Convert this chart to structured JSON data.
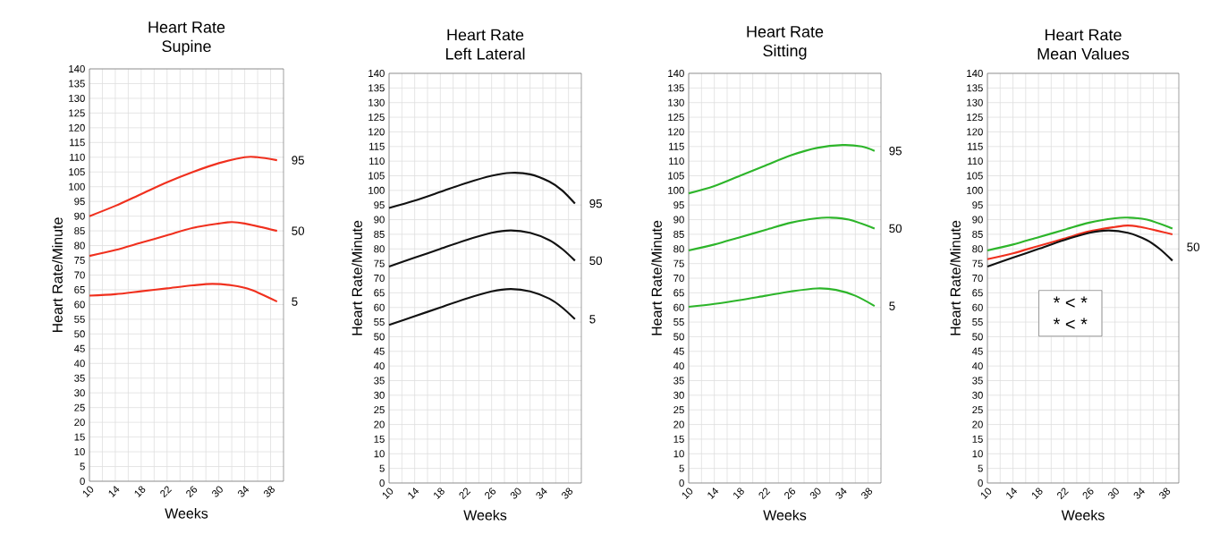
{
  "chart_data": [
    {
      "type": "line",
      "title": "Heart Rate",
      "subtitle": "Supine",
      "xlabel": "Weeks",
      "ylabel": "Heart Rate/Minute",
      "xlim": [
        10,
        40
      ],
      "ylim": [
        0,
        140
      ],
      "xticks": [
        10,
        14,
        18,
        22,
        26,
        30,
        34,
        38
      ],
      "yticks": [
        0,
        5,
        10,
        15,
        20,
        25,
        30,
        35,
        40,
        45,
        50,
        55,
        60,
        65,
        70,
        75,
        80,
        85,
        90,
        95,
        100,
        105,
        110,
        115,
        120,
        125,
        130,
        135,
        140
      ],
      "grid": true,
      "series": [
        {
          "name": "95",
          "color": "#f0301e",
          "x": [
            10,
            14,
            18,
            22,
            26,
            30,
            34,
            36,
            39
          ],
          "values": [
            90,
            93.5,
            97.5,
            101.5,
            105,
            108,
            110,
            110,
            109
          ]
        },
        {
          "name": "50",
          "color": "#f0301e",
          "x": [
            10,
            14,
            18,
            22,
            26,
            30,
            32,
            34,
            39
          ],
          "values": [
            76.5,
            78.5,
            81,
            83.5,
            86,
            87.5,
            88,
            87.5,
            85
          ]
        },
        {
          "name": "5",
          "color": "#f0301e",
          "x": [
            10,
            14,
            18,
            22,
            26,
            29,
            32,
            35,
            39
          ],
          "values": [
            63,
            63.5,
            64.5,
            65.5,
            66.5,
            67,
            66.5,
            65,
            61
          ]
        }
      ]
    },
    {
      "type": "line",
      "title": "Heart Rate",
      "subtitle": "Left Lateral",
      "xlabel": "Weeks",
      "ylabel": "Heart Rate/Minute",
      "xlim": [
        10,
        40
      ],
      "ylim": [
        0,
        140
      ],
      "xticks": [
        10,
        14,
        18,
        22,
        26,
        30,
        34,
        38
      ],
      "yticks": [
        0,
        5,
        10,
        15,
        20,
        25,
        30,
        35,
        40,
        45,
        50,
        55,
        60,
        65,
        70,
        75,
        80,
        85,
        90,
        95,
        100,
        105,
        110,
        115,
        120,
        125,
        130,
        135,
        140
      ],
      "grid": true,
      "series": [
        {
          "name": "95",
          "color": "#111111",
          "x": [
            10,
            14,
            18,
            22,
            26,
            29,
            32,
            35,
            37,
            39
          ],
          "values": [
            94,
            96.5,
            99.5,
            102.5,
            105,
            106,
            105.5,
            103,
            100,
            95.5
          ]
        },
        {
          "name": "50",
          "color": "#111111",
          "x": [
            10,
            14,
            18,
            22,
            26,
            29,
            32,
            35,
            37,
            39
          ],
          "values": [
            74,
            77,
            80,
            83,
            85.5,
            86.3,
            85.5,
            83,
            80,
            76
          ]
        },
        {
          "name": "5",
          "color": "#111111",
          "x": [
            10,
            14,
            18,
            22,
            26,
            29,
            32,
            35,
            37,
            39
          ],
          "values": [
            54,
            57,
            60,
            63,
            65.5,
            66.3,
            65.5,
            63,
            60,
            56
          ]
        }
      ]
    },
    {
      "type": "line",
      "title": "Heart Rate",
      "subtitle": "Sitting",
      "xlabel": "Weeks",
      "ylabel": "Heart Rate/Minute",
      "xlim": [
        10,
        40
      ],
      "ylim": [
        0,
        140
      ],
      "xticks": [
        10,
        14,
        18,
        22,
        26,
        30,
        34,
        38
      ],
      "yticks": [
        0,
        5,
        10,
        15,
        20,
        25,
        30,
        35,
        40,
        45,
        50,
        55,
        60,
        65,
        70,
        75,
        80,
        85,
        90,
        95,
        100,
        105,
        110,
        115,
        120,
        125,
        130,
        135,
        140
      ],
      "grid": true,
      "series": [
        {
          "name": "95",
          "color": "#2db52a",
          "x": [
            10,
            14,
            18,
            22,
            26,
            30,
            34,
            37,
            39
          ],
          "values": [
            99,
            101.5,
            105,
            108.5,
            112,
            114.5,
            115.5,
            115,
            113.5
          ]
        },
        {
          "name": "50",
          "color": "#2db52a",
          "x": [
            10,
            14,
            18,
            22,
            26,
            30,
            32,
            35,
            39
          ],
          "values": [
            79.5,
            81.5,
            84,
            86.5,
            89,
            90.5,
            90.7,
            90,
            87
          ]
        },
        {
          "name": "5",
          "color": "#2db52a",
          "x": [
            10,
            14,
            18,
            22,
            26,
            30,
            33,
            36,
            39
          ],
          "values": [
            60.2,
            61.2,
            62.5,
            64,
            65.5,
            66.5,
            66,
            64,
            60.5
          ]
        }
      ]
    },
    {
      "type": "line",
      "title": "Heart Rate",
      "subtitle": "Mean Values",
      "xlabel": "Weeks",
      "ylabel": "Heart Rate/Minute",
      "xlim": [
        10,
        40
      ],
      "ylim": [
        0,
        140
      ],
      "xticks": [
        10,
        14,
        18,
        22,
        26,
        30,
        34,
        38
      ],
      "yticks": [
        0,
        5,
        10,
        15,
        20,
        25,
        30,
        35,
        40,
        45,
        50,
        55,
        60,
        65,
        70,
        75,
        80,
        85,
        90,
        95,
        100,
        105,
        110,
        115,
        120,
        125,
        130,
        135,
        140
      ],
      "grid": true,
      "annotations": [
        "50",
        "* < *",
        "* < *"
      ],
      "series": [
        {
          "color": "#f0301e",
          "x": [
            10,
            14,
            18,
            22,
            26,
            30,
            32,
            34,
            39
          ],
          "values": [
            76.5,
            78.5,
            81,
            83.5,
            86,
            87.5,
            88,
            87.5,
            85
          ]
        },
        {
          "color": "#111111",
          "x": [
            10,
            14,
            18,
            22,
            26,
            29,
            32,
            35,
            37,
            39
          ],
          "values": [
            74,
            77,
            80,
            83,
            85.5,
            86.3,
            85.5,
            83,
            80,
            76
          ]
        },
        {
          "color": "#2db52a",
          "x": [
            10,
            14,
            18,
            22,
            26,
            30,
            32,
            35,
            39
          ],
          "values": [
            79.5,
            81.5,
            84,
            86.5,
            89,
            90.5,
            90.7,
            90,
            87
          ]
        }
      ]
    }
  ]
}
